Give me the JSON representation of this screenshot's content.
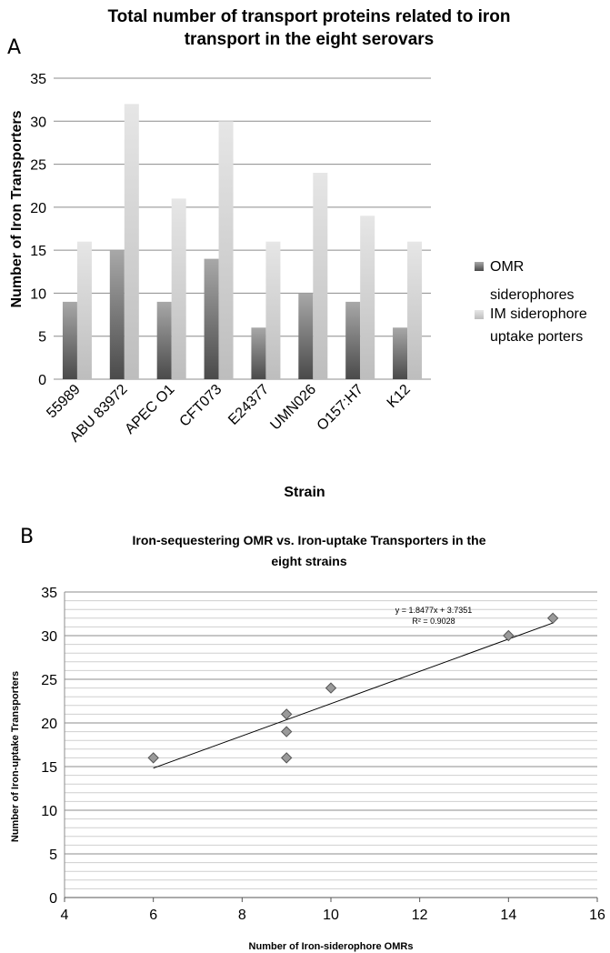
{
  "chart_data": [
    {
      "type": "bar",
      "panel_label": "A",
      "title": "Total number of transport proteins related to iron transport in the eight serovars",
      "xlabel": "Strain",
      "ylabel": "Number of Iron Transporters",
      "ylim": [
        0,
        35
      ],
      "yticks": [
        "0",
        "5",
        "10",
        "15",
        "20",
        "25",
        "30",
        "35"
      ],
      "categories": [
        "55989",
        "ABU 83972",
        "APEC O1",
        "CFT073",
        "E24377",
        "UMN026",
        "O157:H7",
        "K12"
      ],
      "series": [
        {
          "name": "OMR siderophores",
          "name_lines": [
            "OMR",
            "siderophores"
          ],
          "values": [
            9,
            15,
            9,
            14,
            6,
            10,
            9,
            6
          ],
          "color": "#6f6f6f"
        },
        {
          "name": "IM siderophore uptake porters",
          "name_lines": [
            "IM siderophore",
            "uptake porters"
          ],
          "values": [
            16,
            32,
            21,
            30,
            16,
            24,
            19,
            16
          ],
          "color": "#d9d9d9"
        }
      ],
      "grid": true,
      "legend": "right"
    },
    {
      "type": "scatter",
      "panel_label": "B",
      "title": "Iron-sequestering OMR vs. Iron-uptake Transporters in the eight strains",
      "title_lines": [
        "Iron-sequestering OMR vs. Iron-uptake Transporters in the",
        "eight strains"
      ],
      "xlabel": "Number of Iron-siderophore OMRs",
      "ylabel": "Number of Iron-uptake Transporters",
      "xlim": [
        4,
        16
      ],
      "ylim": [
        0,
        35
      ],
      "xticks": [
        "4",
        "6",
        "8",
        "10",
        "12",
        "14",
        "16"
      ],
      "yticks": [
        "0",
        "5",
        "10",
        "15",
        "20",
        "25",
        "30",
        "35"
      ],
      "points": [
        {
          "x": 6,
          "y": 16
        },
        {
          "x": 9,
          "y": 16
        },
        {
          "x": 9,
          "y": 19
        },
        {
          "x": 9,
          "y": 21
        },
        {
          "x": 10,
          "y": 24
        },
        {
          "x": 14,
          "y": 30
        },
        {
          "x": 15,
          "y": 32
        }
      ],
      "trendline": {
        "slope": 1.8477,
        "intercept": 3.7351,
        "x_range": [
          6,
          15
        ]
      },
      "equation": "y = 1.8477x + 3.7351",
      "r_squared": "R² = 0.9028",
      "grid": true
    }
  ]
}
